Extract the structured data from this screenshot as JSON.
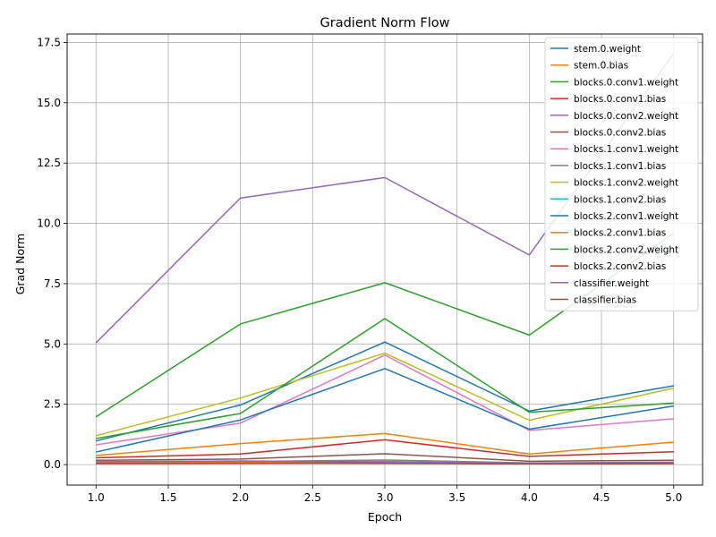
{
  "chart_data": {
    "type": "line",
    "title": "Gradient Norm Flow",
    "xlabel": "Epoch",
    "ylabel": "Grad Norm",
    "xlim": [
      0.8,
      5.2
    ],
    "ylim": [
      -0.85,
      17.85
    ],
    "xticks": [
      1.0,
      1.5,
      2.0,
      2.5,
      3.0,
      3.5,
      4.0,
      4.5,
      5.0
    ],
    "xtick_labels": [
      "1.0",
      "1.5",
      "2.0",
      "2.5",
      "3.0",
      "3.5",
      "4.0",
      "4.5",
      "5.0"
    ],
    "yticks": [
      0.0,
      2.5,
      5.0,
      7.5,
      10.0,
      12.5,
      15.0,
      17.5
    ],
    "ytick_labels": [
      "0.0",
      "2.5",
      "5.0",
      "7.5",
      "10.0",
      "12.5",
      "15.0",
      "17.5"
    ],
    "grid": true,
    "legend_position": "top-right",
    "x": [
      1,
      2,
      3,
      4,
      5
    ],
    "series": [
      {
        "name": "stem.0.weight",
        "color": "#1f77b4",
        "values": [
          0.98,
          2.47,
          5.08,
          2.22,
          3.27
        ]
      },
      {
        "name": "stem.0.bias",
        "color": "#ff7f0e",
        "values": [
          0.38,
          0.87,
          1.29,
          0.44,
          0.93
        ]
      },
      {
        "name": "blocks.0.conv1.weight",
        "color": "#2ca02c",
        "values": [
          1.98,
          5.83,
          7.54,
          5.37,
          9.6
        ]
      },
      {
        "name": "blocks.0.conv1.bias",
        "color": "#d62728",
        "values": [
          0.28,
          0.44,
          1.03,
          0.34,
          0.53
        ]
      },
      {
        "name": "blocks.0.conv2.weight",
        "color": "#9467bd",
        "values": [
          5.05,
          11.05,
          11.9,
          8.69,
          17.05
        ]
      },
      {
        "name": "blocks.0.conv2.bias",
        "color": "#8c564b",
        "values": [
          0.18,
          0.23,
          0.45,
          0.14,
          0.18
        ]
      },
      {
        "name": "blocks.1.conv1.weight",
        "color": "#e377c2",
        "values": [
          0.82,
          1.72,
          4.54,
          1.42,
          1.9
        ]
      },
      {
        "name": "blocks.1.conv1.bias",
        "color": "#7f7f7f",
        "values": [
          0.1,
          0.13,
          0.19,
          0.07,
          0.1
        ]
      },
      {
        "name": "blocks.1.conv2.weight",
        "color": "#bcbd22",
        "values": [
          1.2,
          2.76,
          4.62,
          1.84,
          3.17
        ]
      },
      {
        "name": "blocks.1.conv2.bias",
        "color": "#17becf",
        "values": [
          0.06,
          0.08,
          0.11,
          0.05,
          0.06
        ]
      },
      {
        "name": "blocks.2.conv1.weight",
        "color": "#1f77b4",
        "values": [
          0.52,
          1.85,
          3.98,
          1.47,
          2.43
        ]
      },
      {
        "name": "blocks.2.conv1.bias",
        "color": "#ff7f0e",
        "values": [
          0.07,
          0.09,
          0.13,
          0.05,
          0.07
        ]
      },
      {
        "name": "blocks.2.conv2.weight",
        "color": "#2ca02c",
        "values": [
          1.08,
          2.12,
          6.05,
          2.17,
          2.55
        ]
      },
      {
        "name": "blocks.2.conv2.bias",
        "color": "#d62728",
        "values": [
          0.04,
          0.05,
          0.07,
          0.03,
          0.04
        ]
      },
      {
        "name": "classifier.weight",
        "color": "#9467bd",
        "values": [
          0.12,
          0.15,
          0.11,
          0.06,
          0.08
        ]
      },
      {
        "name": "classifier.bias",
        "color": "#8c564b",
        "values": [
          0.05,
          0.06,
          0.05,
          0.03,
          0.04
        ]
      }
    ]
  }
}
